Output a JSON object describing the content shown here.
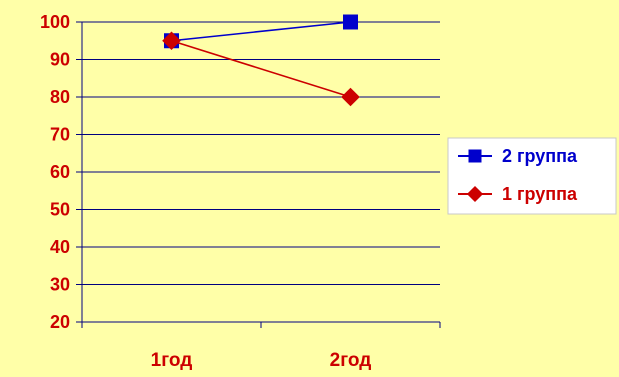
{
  "chart_data": {
    "type": "line",
    "title": "",
    "xlabel": "",
    "ylabel": "",
    "categories": [
      "1год",
      "2год"
    ],
    "ylim": [
      20,
      100
    ],
    "yticks": [
      20,
      30,
      40,
      50,
      60,
      70,
      80,
      90,
      100
    ],
    "grid": true,
    "legend_position": "right",
    "series": [
      {
        "name": "2 группа",
        "values": [
          95,
          100
        ],
        "color": "#0000CC",
        "marker": "square"
      },
      {
        "name": "1 группа",
        "values": [
          95,
          80
        ],
        "color": "#CC0000",
        "marker": "diamond"
      }
    ],
    "colors": {
      "background": "#FFFFA8",
      "axis_text": "#CC0000",
      "gridline": "#000080",
      "legend_background": "#FFFFFF",
      "legend_border": "#C8C8C8"
    }
  }
}
